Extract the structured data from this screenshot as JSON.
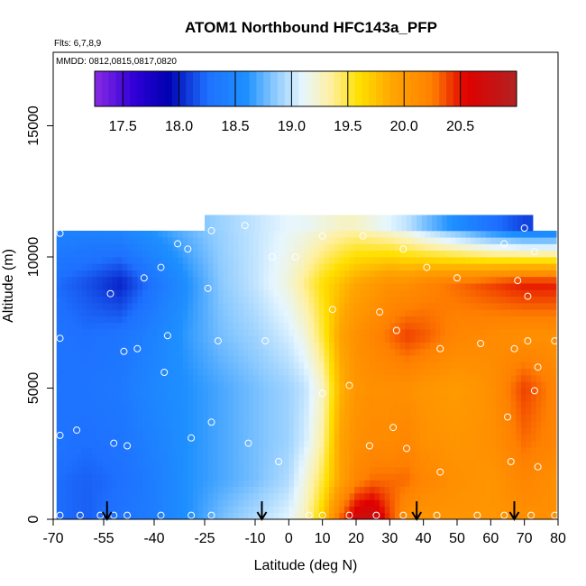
{
  "chart_data": {
    "type": "heatmap",
    "title": "ATOM1 Northbound HFC143a_PFP",
    "flights_note": "Flts: 6,7,8,9",
    "dates_note": "MMDD: 0812,0815,0817,0820",
    "xlabel": "Latitude (deg N)",
    "ylabel": "Altitude (m)",
    "xlim": [
      -70,
      80
    ],
    "ylim": [
      0,
      17800
    ],
    "x_ticks": [
      {
        "value": -70,
        "label": "-70"
      },
      {
        "value": -55,
        "label": "-55"
      },
      {
        "value": -40,
        "label": "-40"
      },
      {
        "value": -25,
        "label": "-25"
      },
      {
        "value": -10,
        "label": "-10"
      },
      {
        "value": 0,
        "label": "0"
      },
      {
        "value": 10,
        "label": "10"
      },
      {
        "value": 20,
        "label": "20"
      },
      {
        "value": 30,
        "label": "30"
      },
      {
        "value": 40,
        "label": "40"
      },
      {
        "value": 50,
        "label": "50"
      },
      {
        "value": 60,
        "label": "60"
      },
      {
        "value": 70,
        "label": "70"
      },
      {
        "value": 80,
        "label": "80"
      }
    ],
    "y_ticks": [
      {
        "value": 0,
        "label": "0"
      },
      {
        "value": 5000,
        "label": "5000"
      },
      {
        "value": 10000,
        "label": "10000"
      },
      {
        "value": 15000,
        "label": "15000"
      }
    ],
    "colorbar": {
      "range": [
        17.25,
        21.0
      ],
      "ticks": [
        {
          "value": 17.5,
          "label": "17.5"
        },
        {
          "value": 18.0,
          "label": "18.0"
        },
        {
          "value": 18.5,
          "label": "18.5"
        },
        {
          "value": 19.0,
          "label": "19.0"
        },
        {
          "value": 19.5,
          "label": "19.5"
        },
        {
          "value": 20.0,
          "label": "20.0"
        },
        {
          "value": 20.5,
          "label": "20.5"
        }
      ],
      "stops": [
        {
          "value": 17.25,
          "color": "#8a2be2"
        },
        {
          "value": 17.6,
          "color": "#3000d8"
        },
        {
          "value": 17.9,
          "color": "#0000b0"
        },
        {
          "value": 18.25,
          "color": "#1e70ff"
        },
        {
          "value": 18.6,
          "color": "#1e90ff"
        },
        {
          "value": 18.85,
          "color": "#8ccaff"
        },
        {
          "value": 19.1,
          "color": "#e6f6ff"
        },
        {
          "value": 19.35,
          "color": "#fff0a0"
        },
        {
          "value": 19.6,
          "color": "#ffe000"
        },
        {
          "value": 19.9,
          "color": "#ffa500"
        },
        {
          "value": 20.25,
          "color": "#ff8000"
        },
        {
          "value": 20.55,
          "color": "#e00000"
        },
        {
          "value": 21.0,
          "color": "#b22222"
        }
      ]
    },
    "field_anchors": {
      "latitudes": [
        -70,
        -60,
        -50,
        -40,
        -30,
        -20,
        -10,
        0,
        5,
        10,
        15,
        20,
        25,
        30,
        35,
        40,
        50,
        60,
        70,
        80
      ],
      "altitudes": [
        0,
        1500,
        3000,
        5000,
        7000,
        9000,
        11500
      ],
      "values": [
        [
          18.25,
          18.2,
          18.3,
          18.4,
          18.6,
          18.8,
          18.95,
          19.1,
          19.3,
          19.7,
          20.3,
          20.7,
          20.8,
          20.4,
          20.1,
          20.05,
          20.05,
          20.05,
          20.1,
          20.1
        ],
        [
          18.25,
          18.2,
          18.25,
          18.4,
          18.6,
          18.7,
          18.8,
          18.95,
          19.2,
          19.5,
          19.9,
          20.2,
          20.3,
          20.3,
          20.3,
          20.2,
          20.1,
          20.05,
          20.2,
          20.1
        ],
        [
          18.3,
          18.25,
          18.3,
          18.45,
          18.6,
          18.7,
          18.8,
          18.9,
          19.05,
          19.35,
          19.9,
          20.1,
          20.15,
          20.15,
          20.2,
          20.1,
          20.05,
          20.1,
          20.3,
          20.2
        ],
        [
          18.3,
          18.3,
          18.35,
          18.5,
          18.6,
          18.7,
          18.8,
          18.9,
          19.0,
          19.25,
          19.8,
          20.05,
          20.1,
          20.1,
          20.1,
          20.05,
          20.0,
          20.1,
          20.4,
          20.2
        ],
        [
          18.3,
          18.25,
          18.3,
          18.45,
          18.65,
          18.8,
          18.9,
          19.05,
          19.2,
          19.5,
          19.9,
          20.1,
          20.2,
          20.3,
          20.4,
          20.35,
          20.2,
          20.15,
          20.1,
          20.1
        ],
        [
          18.25,
          18.15,
          18.0,
          18.3,
          18.6,
          18.85,
          19.0,
          19.2,
          19.4,
          19.6,
          19.75,
          19.9,
          20.0,
          20.1,
          20.1,
          20.2,
          20.3,
          20.4,
          20.5,
          20.5
        ],
        [
          18.5,
          18.5,
          18.6,
          18.7,
          18.8,
          18.9,
          19.0,
          19.1,
          19.1,
          19.15,
          19.2,
          19.2,
          19.1,
          19.0,
          18.9,
          18.7,
          18.4,
          18.1,
          17.9,
          17.9
        ]
      ]
    },
    "data_extent": {
      "lat_range": [
        -69,
        79
      ],
      "alt_range": [
        0,
        11000
      ],
      "upper_lat_range": [
        -25,
        72
      ],
      "upper_alt_range": [
        11000,
        11600
      ]
    },
    "sample_points": [
      [
        -68,
        150
      ],
      [
        -62,
        150
      ],
      [
        -56,
        150
      ],
      [
        -52,
        150
      ],
      [
        -48,
        150
      ],
      [
        -38,
        150
      ],
      [
        -29,
        150
      ],
      [
        -23,
        150
      ],
      [
        6,
        150
      ],
      [
        10,
        150
      ],
      [
        18,
        150
      ],
      [
        26,
        150
      ],
      [
        34,
        150
      ],
      [
        44,
        150
      ],
      [
        56,
        150
      ],
      [
        64,
        150
      ],
      [
        72,
        150
      ],
      [
        79,
        150
      ],
      [
        -68,
        3200
      ],
      [
        -63,
        3400
      ],
      [
        -52,
        2900
      ],
      [
        -48,
        2800
      ],
      [
        -29,
        3100
      ],
      [
        -23,
        3700
      ],
      [
        -12,
        2900
      ],
      [
        -3,
        2200
      ],
      [
        24,
        2800
      ],
      [
        31,
        3500
      ],
      [
        35,
        2700
      ],
      [
        45,
        1800
      ],
      [
        66,
        2200
      ],
      [
        74,
        2000
      ],
      [
        65,
        3900
      ],
      [
        -68,
        6900
      ],
      [
        -49,
        6400
      ],
      [
        -45,
        6500
      ],
      [
        -36,
        7000
      ],
      [
        -37,
        5600
      ],
      [
        -21,
        6800
      ],
      [
        -7,
        6800
      ],
      [
        10,
        4800
      ],
      [
        18,
        5100
      ],
      [
        32,
        7200
      ],
      [
        45,
        6500
      ],
      [
        57,
        6700
      ],
      [
        67,
        6500
      ],
      [
        71,
        6800
      ],
      [
        79,
        6800
      ],
      [
        74,
        5800
      ],
      [
        73,
        4900
      ],
      [
        -53,
        8600
      ],
      [
        -43,
        9200
      ],
      [
        -38,
        9600
      ],
      [
        -24,
        8800
      ],
      [
        -5,
        10000
      ],
      [
        2,
        10000
      ],
      [
        -68,
        10900
      ],
      [
        -33,
        10500
      ],
      [
        -30,
        10300
      ],
      [
        -23,
        11000
      ],
      [
        -13,
        11200
      ],
      [
        10,
        10800
      ],
      [
        22,
        10800
      ],
      [
        34,
        10300
      ],
      [
        41,
        9600
      ],
      [
        50,
        9200
      ],
      [
        64,
        10500
      ],
      [
        73,
        10200
      ],
      [
        68,
        9100
      ],
      [
        71,
        8500
      ],
      [
        70,
        11100
      ],
      [
        13,
        8000
      ],
      [
        27,
        7900
      ]
    ],
    "flight_markers": [
      -54,
      -8,
      38,
      67
    ]
  }
}
